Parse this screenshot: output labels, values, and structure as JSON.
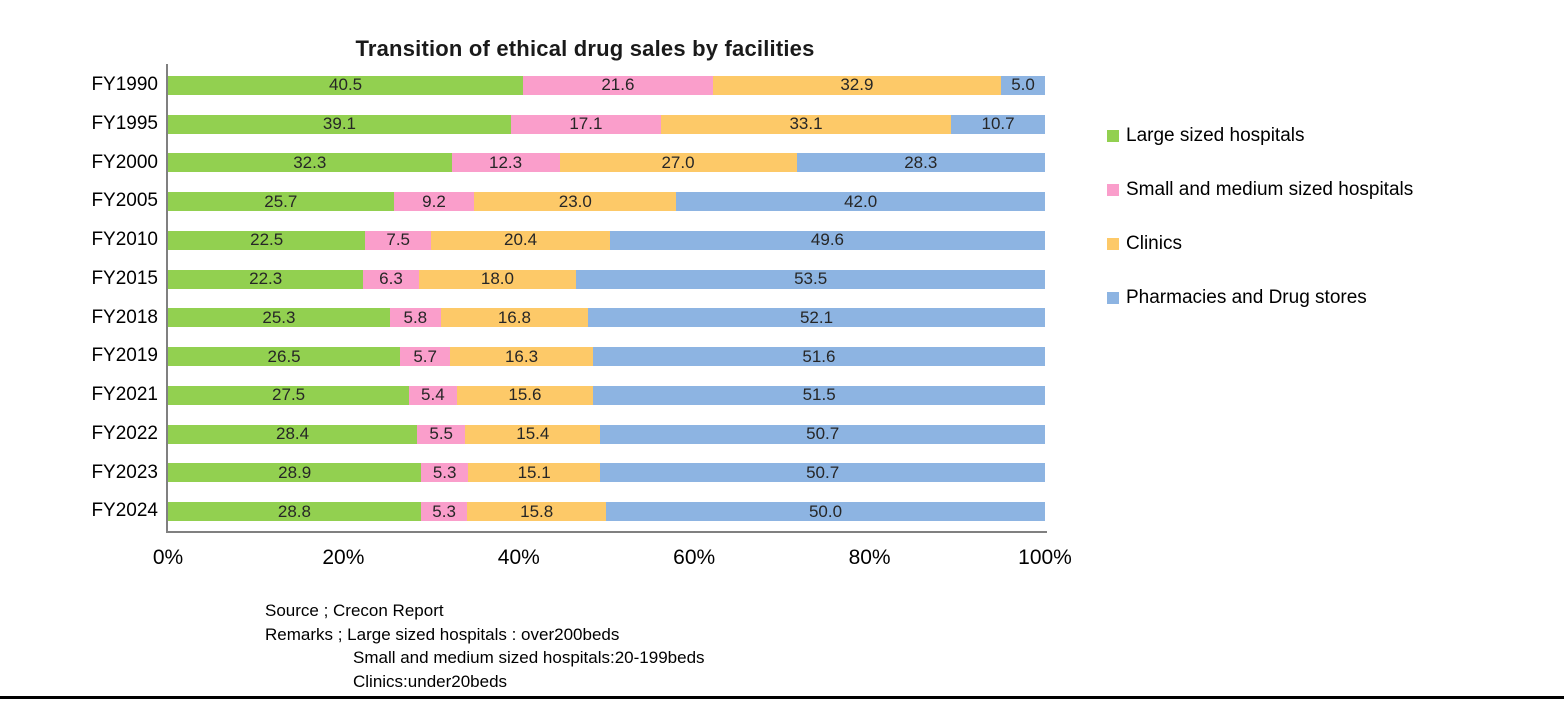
{
  "chart_data": {
    "type": "bar",
    "orientation": "horizontal",
    "stacked": true,
    "unit": "%",
    "title": "Transition of ethical drug sales by facilities",
    "categories": [
      "FY1990",
      "FY1995",
      "FY2000",
      "FY2005",
      "FY2010",
      "FY2015",
      "FY2018",
      "FY2019",
      "FY2021",
      "FY2022",
      "FY2023",
      "FY2024"
    ],
    "series": [
      {
        "name": "Large sized hospitals",
        "color": "#92D050",
        "values": [
          40.5,
          39.1,
          32.3,
          25.7,
          22.5,
          22.3,
          25.3,
          26.5,
          27.5,
          28.4,
          28.9,
          28.8
        ]
      },
      {
        "name": "Small and medium sized hospitals",
        "color": "#FA9ECB",
        "values": [
          21.6,
          17.1,
          12.3,
          9.2,
          7.5,
          6.3,
          5.8,
          5.7,
          5.4,
          5.5,
          5.3,
          5.3
        ]
      },
      {
        "name": "Clinics",
        "color": "#FDC968",
        "values": [
          32.9,
          33.1,
          27.0,
          23.0,
          20.4,
          18.0,
          16.8,
          16.3,
          15.6,
          15.4,
          15.1,
          15.8
        ]
      },
      {
        "name": "Pharmacies and Drug stores",
        "color": "#8DB4E2",
        "values": [
          5.0,
          10.7,
          28.3,
          42.0,
          49.6,
          53.5,
          52.1,
          51.6,
          51.5,
          50.7,
          50.7,
          50.0
        ]
      }
    ],
    "x_ticks": [
      "0%",
      "20%",
      "40%",
      "60%",
      "80%",
      "100%"
    ],
    "xlim": [
      0,
      100
    ],
    "grid": false,
    "legend_position": "right",
    "value_label_format": "one-decimal"
  },
  "notes": {
    "line1": "Source ; Crecon Report",
    "line2": "Remarks ; Large sized hospitals : over200beds",
    "line3": "Small and medium sized hospitals:20-199beds",
    "line4": "Clinics:under20beds"
  }
}
